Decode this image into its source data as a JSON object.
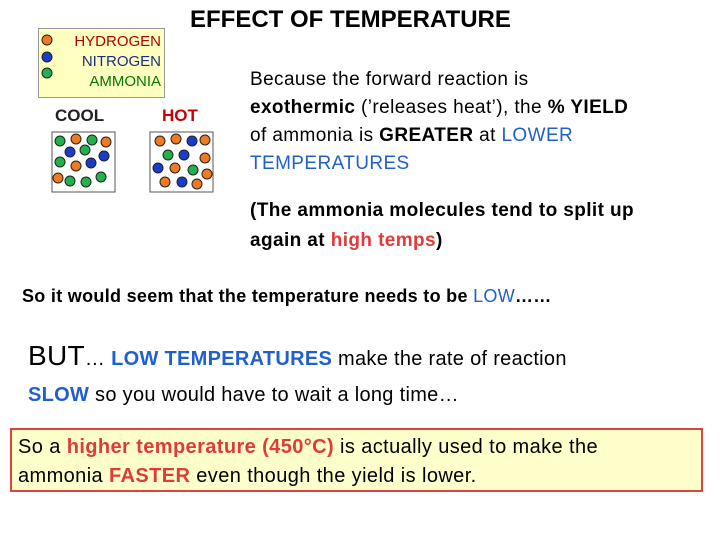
{
  "slide": {
    "title": "EFFECT OF TEMPERATURE",
    "legend": [
      "HYDROGEN",
      "NITROGEN",
      "AMMONIA"
    ],
    "cool": "COOL",
    "hot": "HOT",
    "paragraph_1": [
      "Because the forward reaction is",
      "exothermic",
      " (’releases heat’), the ",
      "% YIELD",
      "of ammonia is ",
      "GREATER",
      " at ",
      "LOWER",
      "TEMPERATURES"
    ],
    "paragraph_2": [
      "(The ammonia molecules tend to split up",
      "again at ",
      "high temps",
      ")"
    ],
    "paragraph_3": [
      "So it would seem that the temperature needs to be ",
      "LOW",
      "……"
    ],
    "paragraph_4": [
      "BUT",
      "… ",
      "LOW TEMPERATURES",
      " make the rate of reaction",
      "SLOW",
      " so you would have to wait a long time…"
    ],
    "conclusion": [
      "So a ",
      "higher temperature (450°C)",
      " is actually used to make the",
      "ammonia ",
      "FASTER",
      " even though the yield is lower."
    ]
  }
}
